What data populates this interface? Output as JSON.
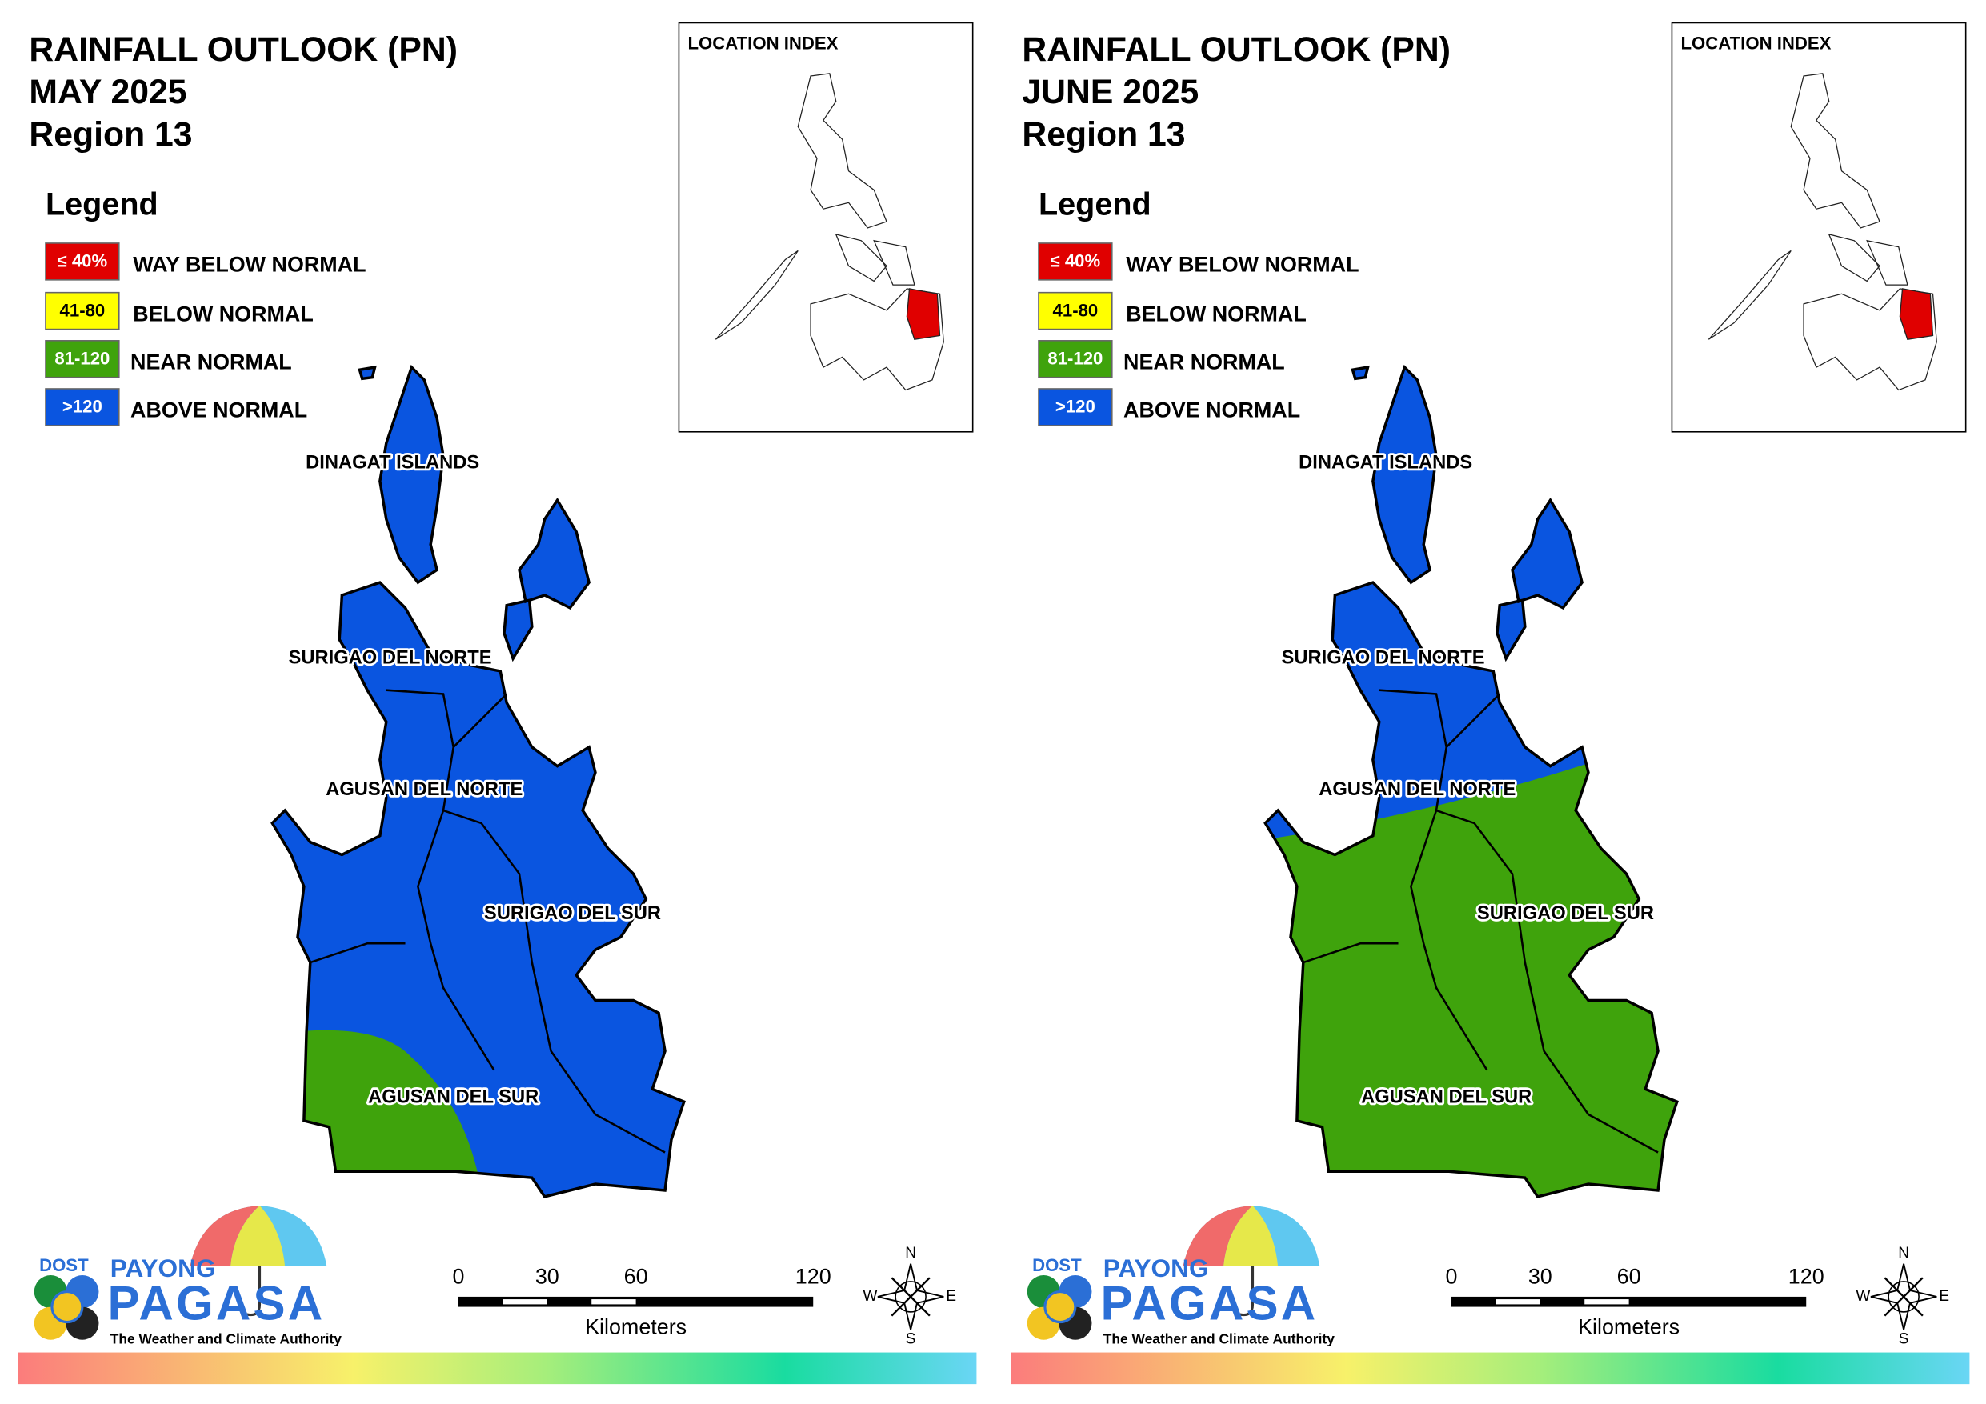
{
  "panels": [
    {
      "title": [
        "RAINFALL OUTLOOK (PN)",
        "MAY 2025",
        "Region 13"
      ],
      "legend": {
        "title": "Legend",
        "items": [
          {
            "symbol": "≤ 40%",
            "label": "WAY BELOW NORMAL",
            "color": "#e00000"
          },
          {
            "symbol": "41-80",
            "label": "BELOW NORMAL",
            "color": "#ffff00"
          },
          {
            "symbol": "81-120",
            "label": "NEAR NORMAL",
            "color": "#3fa30c"
          },
          {
            "symbol": ">120",
            "label": "ABOVE NORMAL",
            "color": "#0a55e0"
          }
        ]
      },
      "location_index": "LOCATION INDEX",
      "provinces": [
        "DINAGAT ISLANDS",
        "SURIGAO DEL NORTE",
        "AGUSAN DEL NORTE",
        "SURIGAO DEL SUR",
        "AGUSAN DEL SUR"
      ],
      "scale": {
        "ticks": [
          0,
          30,
          60,
          120
        ],
        "unit": "Kilometers"
      },
      "compass": [
        "N",
        "E",
        "S",
        "W"
      ],
      "logo": {
        "agency": "DOST",
        "brand_top": "PAYONG",
        "brand": "PAGASA",
        "tagline": "The Weather and Climate Authority"
      }
    },
    {
      "title": [
        "RAINFALL OUTLOOK (PN)",
        "JUNE 2025",
        "Region 13"
      ],
      "legend": {
        "title": "Legend",
        "items": [
          {
            "symbol": "≤ 40%",
            "label": "WAY BELOW NORMAL",
            "color": "#e00000"
          },
          {
            "symbol": "41-80",
            "label": "BELOW NORMAL",
            "color": "#ffff00"
          },
          {
            "symbol": "81-120",
            "label": "NEAR NORMAL",
            "color": "#3fa30c"
          },
          {
            "symbol": ">120",
            "label": "ABOVE NORMAL",
            "color": "#0a55e0"
          }
        ]
      },
      "location_index": "LOCATION INDEX",
      "provinces": [
        "DINAGAT ISLANDS",
        "SURIGAO DEL NORTE",
        "AGUSAN DEL NORTE",
        "SURIGAO DEL SUR",
        "AGUSAN DEL SUR"
      ],
      "scale": {
        "ticks": [
          0,
          30,
          60,
          120
        ],
        "unit": "Kilometers"
      },
      "compass": [
        "N",
        "E",
        "S",
        "W"
      ],
      "logo": {
        "agency": "DOST",
        "brand_top": "PAYONG",
        "brand": "PAGASA",
        "tagline": "The Weather and Climate Authority"
      }
    }
  ]
}
